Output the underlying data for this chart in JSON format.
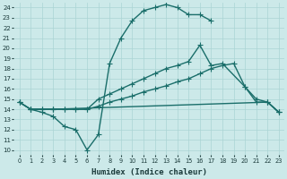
{
  "xlabel": "Humidex (Indice chaleur)",
  "xlim": [
    -0.5,
    23.5
  ],
  "ylim": [
    9.5,
    24.5
  ],
  "xticks": [
    0,
    1,
    2,
    3,
    4,
    5,
    6,
    7,
    8,
    9,
    10,
    11,
    12,
    13,
    14,
    15,
    16,
    17,
    18,
    19,
    20,
    21,
    22,
    23
  ],
  "yticks": [
    10,
    11,
    12,
    13,
    14,
    15,
    16,
    17,
    18,
    19,
    20,
    21,
    22,
    23,
    24
  ],
  "bg_color": "#cce9e9",
  "grid_color": "#aad4d4",
  "line_color": "#1a6e6a",
  "line1_x": [
    0,
    1,
    2,
    3,
    4,
    5,
    6,
    7,
    8,
    9,
    10,
    11,
    12,
    13,
    14,
    15,
    16,
    17
  ],
  "line1_y": [
    14.7,
    14.0,
    13.7,
    13.3,
    12.3,
    12.0,
    10.0,
    11.5,
    18.5,
    21.0,
    22.7,
    23.7,
    24.0,
    24.3,
    24.0,
    23.3,
    23.3,
    22.7
  ],
  "line2_x": [
    0,
    1,
    2,
    3,
    4,
    5,
    6,
    7,
    8,
    9,
    10,
    11,
    12,
    13,
    14,
    15,
    16,
    17,
    18,
    19,
    20,
    21,
    22,
    23
  ],
  "line2_y": [
    14.7,
    14.0,
    14.0,
    14.0,
    14.0,
    14.0,
    14.0,
    14.3,
    14.7,
    15.0,
    15.3,
    15.7,
    16.0,
    16.3,
    16.7,
    17.0,
    17.5,
    18.0,
    18.3,
    18.5,
    16.2,
    15.0,
    14.7,
    13.7
  ],
  "line3_x": [
    0,
    1,
    2,
    3,
    4,
    5,
    6,
    7,
    8,
    9,
    10,
    11,
    12,
    13,
    14,
    15,
    16,
    17,
    18,
    20,
    21,
    22,
    23
  ],
  "line3_y": [
    14.7,
    14.0,
    14.0,
    14.0,
    14.0,
    14.0,
    14.0,
    15.0,
    15.5,
    16.0,
    16.5,
    17.0,
    17.5,
    18.0,
    18.3,
    18.7,
    20.3,
    18.3,
    18.5,
    16.2,
    14.7,
    14.7,
    13.7
  ],
  "line4_x": [
    1,
    3,
    22,
    23
  ],
  "line4_y": [
    14.0,
    14.0,
    14.7,
    13.7
  ],
  "marker": "+",
  "markersize": 4,
  "linewidth": 1.0
}
